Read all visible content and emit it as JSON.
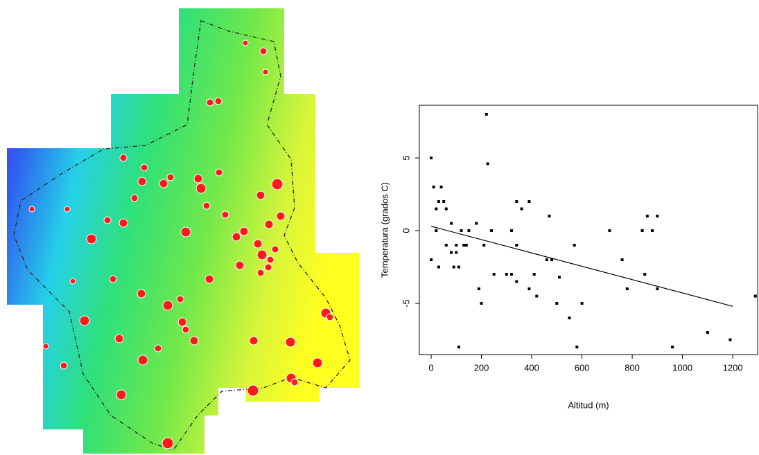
{
  "chart_data": {
    "type": "scatter",
    "xlabel": "Altitud (m)",
    "ylabel": "Temperatura (grados C)",
    "x": [
      0,
      10,
      40,
      30,
      50,
      60,
      20,
      20,
      0,
      30,
      60,
      80,
      80,
      100,
      100,
      120,
      90,
      110,
      130,
      150,
      140,
      110,
      180,
      190,
      200,
      210,
      220,
      225,
      240,
      250,
      300,
      320,
      320,
      340,
      340,
      340,
      360,
      390,
      390,
      410,
      420,
      460,
      470,
      480,
      500,
      510,
      550,
      570,
      580,
      600,
      710,
      760,
      780,
      840,
      850,
      860,
      880,
      900,
      900,
      960,
      1100,
      1190,
      1290
    ],
    "y": [
      5,
      3,
      3,
      2,
      2,
      1.5,
      1.5,
      0,
      -2,
      -2.5,
      -1,
      -1.5,
      0.5,
      -1,
      -1.5,
      0,
      -2.5,
      -2.5,
      -1,
      0,
      -1,
      -8,
      0.5,
      -4,
      -5,
      -1,
      8,
      4.6,
      0,
      -3,
      -3,
      -3,
      0,
      2,
      -1,
      -3.5,
      1.5,
      2,
      -4,
      -3,
      -4.5,
      -2,
      1,
      -2,
      -5,
      -3.2,
      -6,
      -1,
      -8,
      -5,
      0,
      -2,
      -4,
      0,
      -3,
      1,
      0,
      1,
      -4,
      -8,
      -7,
      -7.5,
      -4.5
    ],
    "color": "#000000",
    "trend_line": {
      "x": [
        0,
        1200
      ],
      "y": [
        0.3,
        -5.2
      ]
    },
    "xlim": [
      -47,
      1299
    ],
    "ylim": [
      -8.52,
      8.62
    ],
    "xticks": [
      0,
      200,
      400,
      600,
      800,
      1000,
      1200
    ],
    "yticks": [
      -5,
      0,
      5
    ],
    "grid": false
  }
}
